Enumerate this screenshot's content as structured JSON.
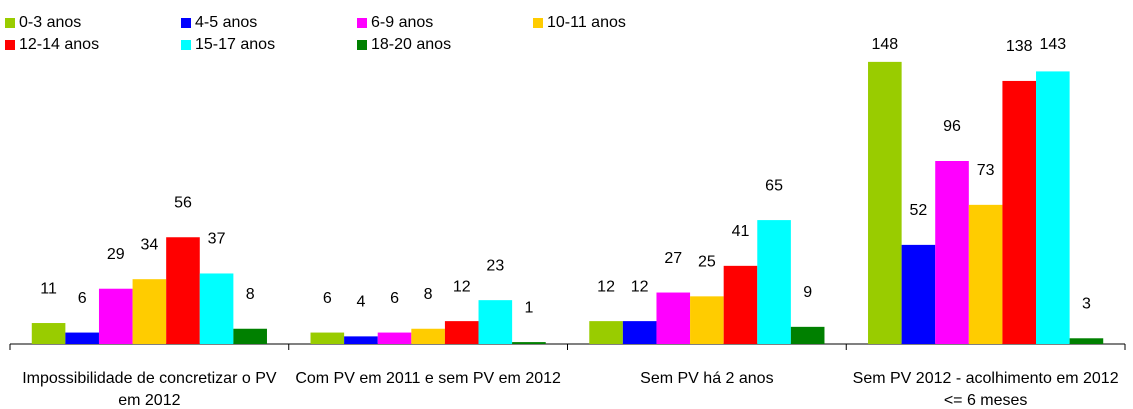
{
  "chart_data": {
    "type": "bar",
    "categories": [
      "Impossibilidade de concretizar o PV em 2012",
      "Com PV em 2011 e sem PV em 2012",
      "Sem PV há 2 anos",
      "Sem PV 2012 - acolhimento em 2012 <= 6 meses"
    ],
    "series": [
      {
        "name": "0-3 anos",
        "color": "#99cc00",
        "values": [
          11,
          6,
          12,
          148
        ]
      },
      {
        "name": "4-5 anos",
        "color": "#0000ff",
        "values": [
          6,
          4,
          12,
          52
        ]
      },
      {
        "name": "6-9 anos",
        "color": "#ff00ff",
        "values": [
          29,
          6,
          27,
          96
        ]
      },
      {
        "name": "10-11 anos",
        "color": "#ffcc00",
        "values": [
          34,
          8,
          25,
          73
        ]
      },
      {
        "name": "12-14 anos",
        "color": "#ff0000",
        "values": [
          56,
          12,
          41,
          138
        ]
      },
      {
        "name": "15-17 anos",
        "color": "#00ffff",
        "values": [
          37,
          23,
          65,
          143
        ]
      },
      {
        "name": "18-20 anos",
        "color": "#008000",
        "values": [
          8,
          1,
          9,
          3
        ]
      }
    ],
    "ylim": [
      0,
      160
    ],
    "legend": "top-left"
  }
}
